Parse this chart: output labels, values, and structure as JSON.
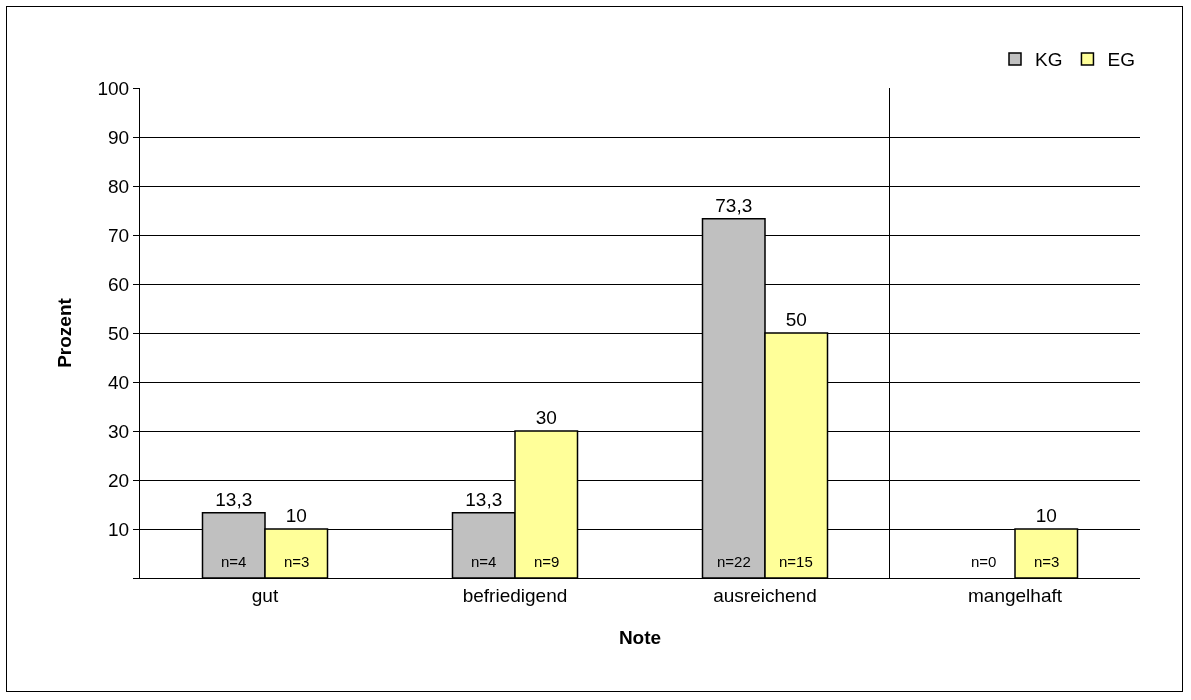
{
  "chart_data": {
    "type": "bar",
    "xlabel": "Note",
    "ylabel": "Prozent",
    "categories": [
      "gut",
      "befriedigend",
      "ausreichend",
      "mangelhaft"
    ],
    "series": [
      {
        "name": "KG",
        "color": "#c0c0c0",
        "values": [
          13.3,
          13.3,
          73.3,
          0
        ],
        "value_labels": [
          "13,3",
          "13,3",
          "73,3",
          null
        ]
      },
      {
        "name": "EG",
        "color": "#ffff99",
        "values": [
          10,
          30,
          50,
          10
        ],
        "value_labels": [
          "10",
          "30",
          "50",
          "10"
        ]
      }
    ],
    "annotations": [
      "n=4",
      "n=3",
      "n=4",
      "n=9",
      "n=22",
      "n=15",
      "n=0",
      "n=3"
    ],
    "ylim": [
      0,
      100
    ],
    "yticks": [
      {
        "value": 0,
        "label": null
      },
      10,
      20,
      30,
      40,
      50,
      60,
      70,
      80,
      90,
      100
    ],
    "grid": "y",
    "legend": "top right"
  }
}
